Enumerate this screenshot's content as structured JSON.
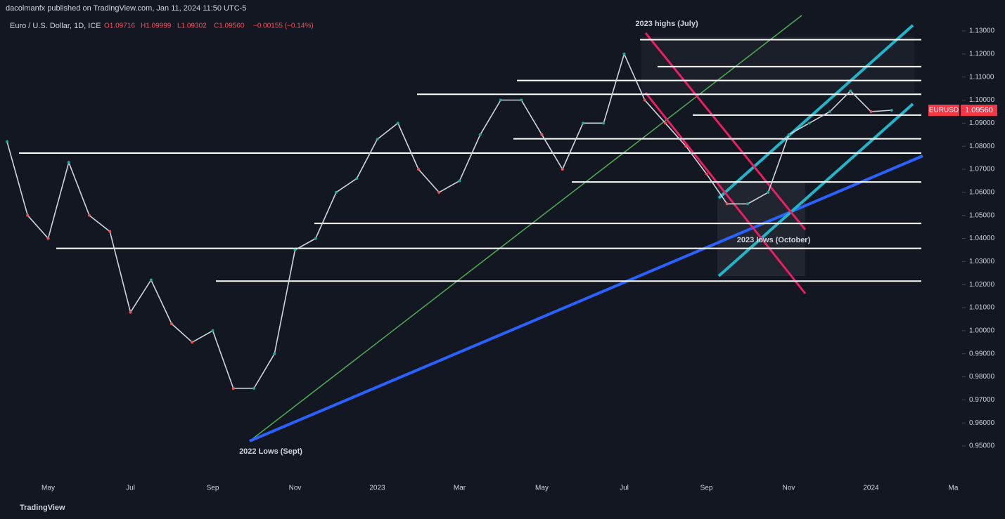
{
  "header": "dacolmanfx published on TradingView.com, Jan 11, 2024 11:50 UTC-5",
  "chart_data": {
    "type": "line",
    "symbol_title": "Euro / U.S. Dollar, 1D, ICE",
    "ohlc": [
      "O1.09716",
      "H1.09999",
      "L1.09302",
      "C1.09560",
      "−0.00155 (−0.14%)"
    ],
    "categories": [
      null,
      null,
      "May",
      null,
      null,
      null,
      "Jul",
      null,
      null,
      null,
      "Sep",
      null,
      null,
      null,
      "Nov",
      null,
      null,
      null,
      "2023",
      null,
      null,
      null,
      "Mar",
      null,
      null,
      null,
      "May",
      null,
      null,
      null,
      "Jul",
      null,
      null,
      null,
      "Sep",
      null,
      null,
      null,
      "Nov",
      null,
      null,
      null,
      "2024",
      null,
      null,
      null,
      "Ma"
    ],
    "series": [
      {
        "name": "EURUSD",
        "color": "#d1d4dc",
        "values": [
          1.082,
          1.05,
          1.04,
          1.073,
          1.05,
          1.043,
          1.008,
          1.022,
          1.003,
          0.995,
          1.0,
          0.975,
          0.975,
          0.99,
          1.035,
          1.04,
          1.06,
          1.066,
          1.083,
          1.09,
          1.07,
          1.06,
          1.065,
          1.085,
          1.1,
          1.1,
          1.085,
          1.07,
          1.09,
          1.09,
          1.12,
          1.1,
          1.09,
          1.08,
          1.068,
          1.055,
          1.055,
          1.06,
          1.085,
          1.09,
          1.095,
          1.104,
          1.095,
          1.0956,
          null,
          null,
          null
        ]
      }
    ],
    "levels": [
      1.1262,
      1.1145,
      1.1085,
      1.1025,
      1.0935,
      1.0832,
      1.077,
      1.0645,
      1.0465,
      1.0357,
      1.0215
    ],
    "level_color": "#ffffff",
    "price_tag": {
      "symbol": "EURUSD",
      "label": "1.09560"
    },
    "annotations": [
      "2023 highs (July)",
      "2022 Lows (Sept)",
      "2023 lows (October)"
    ],
    "ylim": [
      0.9357,
      1.1434
    ],
    "yticks": [
      {
        "value": 0.95,
        "label": "0.95000"
      },
      {
        "value": 0.96,
        "label": "0.96000"
      },
      {
        "value": 0.97,
        "label": "0.97000"
      },
      {
        "value": 0.98,
        "label": "0.98000"
      },
      {
        "value": 0.99,
        "label": "0.99000"
      },
      {
        "value": 1.0,
        "label": "1.00000"
      },
      {
        "value": 1.01,
        "label": "1.01000"
      },
      {
        "value": 1.02,
        "label": "1.02000"
      },
      {
        "value": 1.03,
        "label": "1.03000"
      },
      {
        "value": 1.04,
        "label": "1.04000"
      },
      {
        "value": 1.05,
        "label": "1.05000"
      },
      {
        "value": 1.06,
        "label": "1.06000"
      },
      {
        "value": 1.07,
        "label": "1.07000"
      },
      {
        "value": 1.08,
        "label": "1.08000"
      },
      {
        "value": 1.09,
        "label": "1.09000"
      },
      {
        "value": 1.1,
        "label": "1.10000"
      },
      {
        "value": 1.11,
        "label": "1.11000"
      },
      {
        "value": 1.12,
        "label": "1.12000"
      },
      {
        "value": 1.13,
        "label": "1.13000"
      }
    ],
    "grid": false
  },
  "footer": "TradingView"
}
